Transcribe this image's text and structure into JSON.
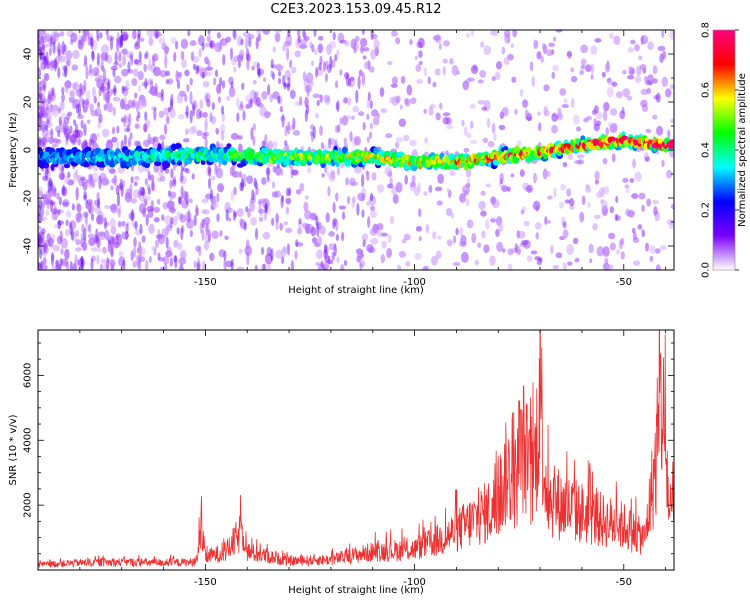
{
  "title": "C2E3.2023.153.09.45.R12",
  "chart_data": [
    {
      "type": "heatmap",
      "xlabel": "Height of straight line (km)",
      "ylabel": "Frequency (Hz)",
      "xlim": [
        -190,
        -38
      ],
      "ylim": [
        -50,
        50
      ],
      "xticks": [
        -150,
        -100,
        -50
      ],
      "yticks": [
        -40,
        -20,
        0,
        20,
        40
      ],
      "grid": false,
      "colorbar": {
        "label": "Normalized spectral amplitude",
        "range": [
          0,
          0.8
        ],
        "ticks": [
          0.0,
          0.2,
          0.4,
          0.6,
          0.8
        ],
        "colormap": [
          "#ffffff",
          "#7b00ff",
          "#0000ff",
          "#00ffff",
          "#00ff00",
          "#ffff00",
          "#ff0000",
          "#ff0080"
        ]
      },
      "ridge": {
        "x": [
          -190,
          -170,
          -150,
          -130,
          -110,
          -100,
          -90,
          -80,
          -70,
          -60,
          -50,
          -40
        ],
        "y": [
          -3,
          -3,
          -2,
          -3,
          -3,
          -5,
          -5,
          -3,
          -1,
          2,
          4,
          2
        ]
      }
    },
    {
      "type": "line",
      "xlabel": "Height of straight line (km)",
      "ylabel": "SNR (10 * v/v)",
      "xlim": [
        -190,
        -38
      ],
      "ylim": [
        0,
        7400
      ],
      "xticks": [
        -150,
        -100,
        -50
      ],
      "yticks": [
        2000,
        4000,
        6000
      ],
      "grid": false,
      "series": [
        {
          "color": "#ee3030",
          "x": [
            -190,
            -180,
            -170,
            -160,
            -152,
            -151,
            -150,
            -145,
            -141,
            -140,
            -130,
            -120,
            -110,
            -100,
            -95,
            -90,
            -85,
            -80,
            -78,
            -76,
            -74,
            -72,
            -71,
            -70,
            -69,
            -68,
            -65,
            -60,
            -55,
            -50,
            -45,
            -42,
            -41,
            -40,
            -39
          ],
          "y": [
            200,
            280,
            300,
            280,
            300,
            1650,
            500,
            700,
            1550,
            700,
            350,
            400,
            700,
            800,
            1100,
            1500,
            2000,
            2500,
            3800,
            3300,
            4800,
            3200,
            4500,
            7300,
            3800,
            2800,
            2500,
            2200,
            1900,
            1700,
            1200,
            4500,
            6700,
            4600,
            2000
          ]
        }
      ]
    }
  ]
}
